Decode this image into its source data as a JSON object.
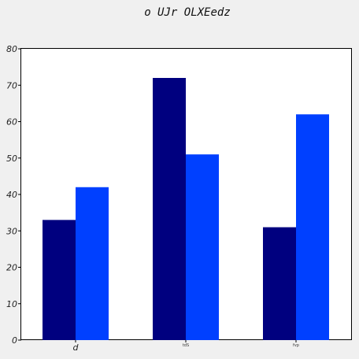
{
  "chart_data": {
    "type": "bar",
    "title": "o UJr OLXEedz",
    "xlabel": "",
    "ylabel": "",
    "categories": [
      "d",
      "tdS",
      "fvp"
    ],
    "series": [
      {
        "values": [
          33,
          72,
          31
        ],
        "color": "#00007f"
      },
      {
        "values": [
          42,
          51,
          62
        ],
        "color": "#0040ff"
      }
    ],
    "ylim": [
      0,
      80
    ],
    "yticks": [
      0,
      10,
      20,
      30,
      40,
      50,
      60,
      70,
      80
    ],
    "grid": false,
    "legend": "none"
  }
}
